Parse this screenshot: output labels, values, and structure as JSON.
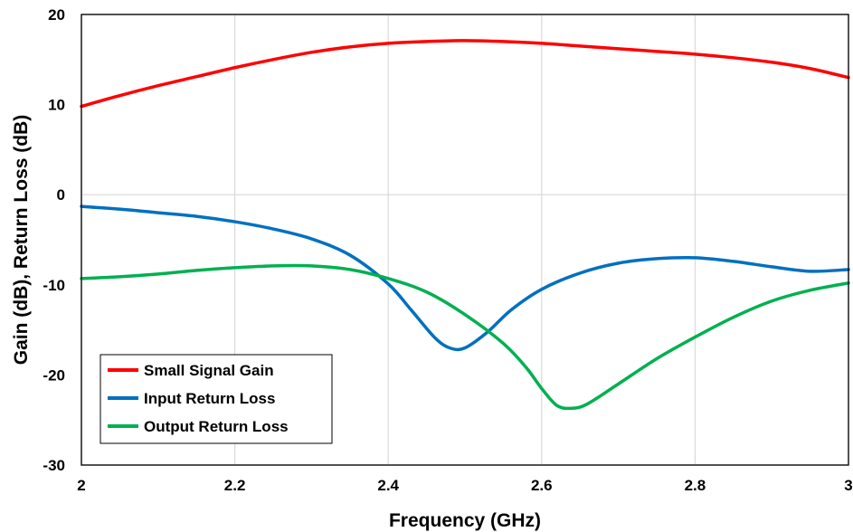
{
  "chart_data": {
    "type": "line",
    "title": "",
    "xlabel": "Frequency (GHz)",
    "ylabel": "Gain (dB), Return Loss (dB)",
    "xlim": [
      2,
      3
    ],
    "ylim": [
      -30,
      20
    ],
    "x_ticks": [
      "2",
      "2.2",
      "2.4",
      "2.6",
      "2.8",
      "3"
    ],
    "y_ticks": [
      "20",
      "10",
      "0",
      "-10",
      "-20",
      "-30"
    ],
    "grid": "vertical",
    "legend_position": "bottom-left",
    "series": [
      {
        "name": "Small Signal Gain",
        "color": "#ff0000",
        "x": [
          2.0,
          2.05,
          2.1,
          2.15,
          2.2,
          2.25,
          2.3,
          2.35,
          2.4,
          2.45,
          2.5,
          2.55,
          2.6,
          2.65,
          2.7,
          2.75,
          2.8,
          2.85,
          2.9,
          2.95,
          3.0
        ],
        "y": [
          9.8,
          11.0,
          12.1,
          13.1,
          14.1,
          15.0,
          15.8,
          16.4,
          16.8,
          17.0,
          17.1,
          17.0,
          16.8,
          16.5,
          16.2,
          15.9,
          15.6,
          15.2,
          14.7,
          14.0,
          13.0
        ]
      },
      {
        "name": "Input Return Loss",
        "color": "#0070c0",
        "x": [
          2.0,
          2.05,
          2.1,
          2.15,
          2.2,
          2.25,
          2.3,
          2.35,
          2.4,
          2.43,
          2.46,
          2.48,
          2.5,
          2.53,
          2.56,
          2.6,
          2.65,
          2.7,
          2.75,
          2.8,
          2.85,
          2.9,
          2.95,
          3.0
        ],
        "y": [
          -1.3,
          -1.6,
          -2.0,
          -2.4,
          -3.0,
          -3.8,
          -4.9,
          -6.7,
          -9.9,
          -12.8,
          -15.8,
          -17.0,
          -17.0,
          -15.2,
          -12.8,
          -10.5,
          -8.7,
          -7.6,
          -7.1,
          -7.0,
          -7.4,
          -8.0,
          -8.5,
          -8.3
        ]
      },
      {
        "name": "Output Return Loss",
        "color": "#00b050",
        "x": [
          2.0,
          2.05,
          2.1,
          2.15,
          2.2,
          2.25,
          2.3,
          2.35,
          2.4,
          2.45,
          2.5,
          2.55,
          2.58,
          2.6,
          2.62,
          2.64,
          2.66,
          2.7,
          2.75,
          2.8,
          2.85,
          2.9,
          2.95,
          3.0
        ],
        "y": [
          -9.3,
          -9.1,
          -8.8,
          -8.4,
          -8.1,
          -7.9,
          -7.9,
          -8.3,
          -9.3,
          -10.8,
          -13.3,
          -16.5,
          -19.2,
          -21.5,
          -23.4,
          -23.7,
          -23.2,
          -21.0,
          -18.2,
          -15.8,
          -13.6,
          -11.8,
          -10.6,
          -9.8
        ]
      }
    ]
  }
}
